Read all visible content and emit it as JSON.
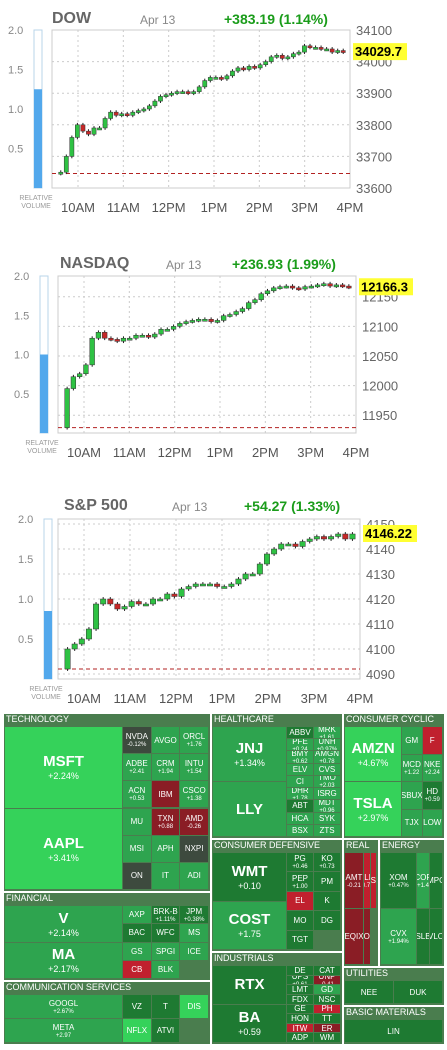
{
  "chart_data": [
    {
      "type": "candlestick",
      "title": "DOW",
      "date": "Apr 13",
      "change": "+383.19 (1.14%)",
      "last_label": "34029.7",
      "x_ticks": [
        "10AM",
        "11AM",
        "12PM",
        "1PM",
        "2PM",
        "3PM",
        "4PM"
      ],
      "y_ticks": [
        34100,
        34000,
        33900,
        33800,
        33700,
        33600
      ],
      "ylim": [
        33600,
        34100
      ],
      "prev_close": 33646,
      "rel_volume_ticks": [
        "2.0",
        "1.5",
        "1.0",
        "0.5"
      ],
      "rel_volume_label": [
        "RELATIVE",
        "VOLUME"
      ],
      "rel_volume": 1.25,
      "closes": [
        33650,
        33700,
        33760,
        33800,
        33780,
        33770,
        33790,
        33790,
        33820,
        33840,
        33830,
        33835,
        33830,
        33840,
        33845,
        33850,
        33860,
        33875,
        33890,
        33895,
        33900,
        33905,
        33905,
        33900,
        33905,
        33920,
        33940,
        33950,
        33950,
        33945,
        33955,
        33970,
        33980,
        33975,
        33985,
        33980,
        33990,
        34000,
        34015,
        34020,
        34010,
        34015,
        34025,
        34030,
        34050,
        34045,
        34045,
        34040,
        34040,
        34030,
        34035,
        34030
      ]
    },
    {
      "type": "candlestick",
      "title": "NASDAQ",
      "date": "Apr 13",
      "change": "+236.93 (1.99%)",
      "last_label": "12166.3",
      "x_ticks": [
        "10AM",
        "11AM",
        "12PM",
        "1PM",
        "2PM",
        "3PM",
        "4PM"
      ],
      "y_ticks": [
        12150,
        12100,
        12050,
        12000,
        11950
      ],
      "ylim": [
        11920,
        12185
      ],
      "prev_close": 11929,
      "rel_volume_ticks": [
        "2.0",
        "1.5",
        "1.0",
        "0.5"
      ],
      "rel_volume_label": [
        "RELATIVE",
        "VOLUME"
      ],
      "rel_volume": 1.0,
      "closes": [
        11995,
        12015,
        12020,
        12035,
        12080,
        12090,
        12080,
        12078,
        12075,
        12080,
        12080,
        12085,
        12085,
        12082,
        12087,
        12095,
        12095,
        12100,
        12105,
        12108,
        12110,
        12112,
        12112,
        12108,
        12110,
        12118,
        12120,
        12125,
        12130,
        12140,
        12145,
        12155,
        12160,
        12165,
        12167,
        12168,
        12165,
        12163,
        12167,
        12168,
        12170,
        12172,
        12168,
        12170,
        12168,
        12166
      ]
    },
    {
      "type": "candlestick",
      "title": "S&P 500",
      "date": "Apr 13",
      "change": "+54.27 (1.33%)",
      "last_label": "4146.22",
      "x_ticks": [
        "10AM",
        "11AM",
        "12PM",
        "1PM",
        "2PM",
        "3PM",
        "4PM"
      ],
      "y_ticks": [
        4150,
        4140,
        4130,
        4120,
        4110,
        4100,
        4090
      ],
      "ylim": [
        4088,
        4152
      ],
      "prev_close": 4092,
      "rel_volume_ticks": [
        "2.0",
        "1.5",
        "1.0",
        "0.5"
      ],
      "rel_volume_label": [
        "RELATIVE",
        "VOLUME"
      ],
      "rel_volume": 0.85,
      "closes": [
        4100,
        4102,
        4104,
        4108,
        4118,
        4120,
        4118,
        4116,
        4117,
        4119,
        4118,
        4118,
        4120,
        4120,
        4122,
        4121,
        4124,
        4125,
        4126,
        4126,
        4126,
        4125,
        4125,
        4126,
        4128,
        4130,
        4130,
        4134,
        4138,
        4140,
        4142,
        4142,
        4141,
        4143,
        4144,
        4145,
        4144,
        4145,
        4146,
        4144,
        4146
      ]
    }
  ],
  "heatmap": {
    "colors": {
      "dark_green": "#1e7a32",
      "green": "#2ea44f",
      "bright_green": "#35d25a",
      "neutral": "#3d4a3e",
      "red": "#c0202e",
      "dark_red": "#8a1d25",
      "header": "#4a7d4e"
    },
    "sectors": [
      {
        "name": "TECHNOLOGY",
        "tiles": [
          {
            "t": "MSFT",
            "c": "+2.24%",
            "s": "bright_green"
          },
          {
            "t": "AAPL",
            "c": "+3.41%",
            "s": "bright_green"
          },
          {
            "t": "NVDA",
            "c": "-0.12%",
            "s": "neutral"
          },
          {
            "t": "AVGO",
            "c": "",
            "s": "green"
          },
          {
            "t": "ORCL",
            "c": "+1.76",
            "s": "green"
          },
          {
            "t": "ADBE",
            "c": "+2.41",
            "s": "green"
          },
          {
            "t": "CRM",
            "c": "+1.94",
            "s": "green"
          },
          {
            "t": "INTU",
            "c": "+1.54",
            "s": "green"
          },
          {
            "t": "ACN",
            "c": "+0.53",
            "s": "green"
          },
          {
            "t": "IBM",
            "c": "",
            "s": "dark_red"
          },
          {
            "t": "CSCO",
            "c": "+1.38",
            "s": "green"
          },
          {
            "t": "MU",
            "c": "",
            "s": "green"
          },
          {
            "t": "TXN",
            "c": "+0.88",
            "s": "dark_red"
          },
          {
            "t": "AMD",
            "c": "-0.26",
            "s": "dark_red"
          },
          {
            "t": "MSI",
            "c": "",
            "s": "green"
          },
          {
            "t": "APH",
            "c": "",
            "s": "green"
          },
          {
            "t": "NXPI",
            "c": "",
            "s": "neutral"
          },
          {
            "t": "ON",
            "c": "",
            "s": "neutral"
          },
          {
            "t": "IT",
            "c": "",
            "s": "green"
          },
          {
            "t": "ADI",
            "c": "",
            "s": "green"
          }
        ]
      },
      {
        "name": "HEALTHCARE",
        "tiles": [
          {
            "t": "JNJ",
            "c": "+1.34%",
            "s": "green"
          },
          {
            "t": "LLY",
            "c": "",
            "s": "green"
          },
          {
            "t": "ABBV",
            "c": "",
            "s": "dark_green"
          },
          {
            "t": "MRK",
            "c": "+1.61",
            "s": "green"
          },
          {
            "t": "PFE",
            "c": "+0.24",
            "s": "green"
          },
          {
            "t": "UNH",
            "c": "+0.97%",
            "s": "green"
          },
          {
            "t": "BMY",
            "c": "+0.62",
            "s": "green"
          },
          {
            "t": "AMGN",
            "c": "+0.78",
            "s": "green"
          },
          {
            "t": "ELV",
            "c": "",
            "s": "green"
          },
          {
            "t": "CVS",
            "c": "",
            "s": "green"
          },
          {
            "t": "CI",
            "c": "",
            "s": "green"
          },
          {
            "t": "TMO",
            "c": "+2.03",
            "s": "green"
          },
          {
            "t": "DHR",
            "c": "+1.78",
            "s": "green"
          },
          {
            "t": "ISRG",
            "c": "",
            "s": "green"
          },
          {
            "t": "ABT",
            "c": "",
            "s": "dark_green"
          },
          {
            "t": "MDT",
            "c": "+0.96",
            "s": "green"
          },
          {
            "t": "HCA",
            "c": "",
            "s": "green"
          },
          {
            "t": "SYK",
            "c": "",
            "s": "green"
          },
          {
            "t": "BSX",
            "c": "",
            "s": "green"
          },
          {
            "t": "ZTS",
            "c": "",
            "s": "green"
          }
        ]
      },
      {
        "name": "CONSUMER CYCLIC",
        "tiles": [
          {
            "t": "AMZN",
            "c": "+4.67%",
            "s": "bright_green"
          },
          {
            "t": "TSLA",
            "c": "+2.97%",
            "s": "bright_green"
          },
          {
            "t": "GM",
            "c": "",
            "s": "green"
          },
          {
            "t": "F",
            "c": "",
            "s": "red"
          },
          {
            "t": "MCD",
            "c": "+1.22",
            "s": "green"
          },
          {
            "t": "NKE",
            "c": "+2.24",
            "s": "green"
          },
          {
            "t": "SBUX",
            "c": "",
            "s": "green"
          },
          {
            "t": "HD",
            "c": "+0.59",
            "s": "dark_green"
          },
          {
            "t": "TJX",
            "c": "",
            "s": "green"
          },
          {
            "t": "LOW",
            "c": "",
            "s": "green"
          }
        ]
      },
      {
        "name": "FINANCIAL",
        "tiles": [
          {
            "t": "V",
            "c": "+2.14%",
            "s": "green"
          },
          {
            "t": "MA",
            "c": "+2.17%",
            "s": "green"
          },
          {
            "t": "AXP",
            "c": "",
            "s": "green"
          },
          {
            "t": "BRK-B",
            "c": "+1.11%",
            "s": "dark_green"
          },
          {
            "t": "JPM",
            "c": "+0.38%",
            "s": "dark_green"
          },
          {
            "t": "BAC",
            "c": "",
            "s": "dark_green"
          },
          {
            "t": "WFC",
            "c": "",
            "s": "dark_green"
          },
          {
            "t": "MS",
            "c": "",
            "s": "green"
          },
          {
            "t": "GS",
            "c": "",
            "s": "green"
          },
          {
            "t": "SPGI",
            "c": "",
            "s": "green"
          },
          {
            "t": "ICE",
            "c": "",
            "s": "green"
          },
          {
            "t": "CB",
            "c": "",
            "s": "red"
          },
          {
            "t": "BLK",
            "c": "",
            "s": "green"
          }
        ]
      },
      {
        "name": "CONSUMER DEFENSIVE",
        "tiles": [
          {
            "t": "WMT",
            "c": "+0.10",
            "s": "dark_green"
          },
          {
            "t": "COST",
            "c": "+1.75",
            "s": "green"
          },
          {
            "t": "PG",
            "c": "+0.46",
            "s": "dark_green"
          },
          {
            "t": "KO",
            "c": "+0.73",
            "s": "dark_green"
          },
          {
            "t": "PEP",
            "c": "+1.00",
            "s": "dark_green"
          },
          {
            "t": "PM",
            "c": "",
            "s": "dark_green"
          },
          {
            "t": "EL",
            "c": "",
            "s": "red"
          },
          {
            "t": "K",
            "c": "",
            "s": "dark_green"
          },
          {
            "t": "MO",
            "c": "",
            "s": "dark_green"
          },
          {
            "t": "DG",
            "c": "",
            "s": "dark_green"
          },
          {
            "t": "TGT",
            "c": "",
            "s": "dark_green"
          }
        ]
      },
      {
        "name": "REAL",
        "tiles": [
          {
            "t": "AMT",
            "c": "-0.21",
            "s": "dark_red"
          },
          {
            "t": "EQIX",
            "c": "",
            "s": "dark_red"
          },
          {
            "t": "PLD",
            "c": "-0.72",
            "s": "red"
          },
          {
            "t": "PSA",
            "c": "",
            "s": "red"
          },
          {
            "t": "O",
            "c": "",
            "s": "dark_red"
          }
        ]
      },
      {
        "name": "ENERGY",
        "tiles": [
          {
            "t": "XOM",
            "c": "+0.47%",
            "s": "dark_green"
          },
          {
            "t": "CVX",
            "c": "+1.94%",
            "s": "green"
          },
          {
            "t": "COP",
            "c": "+1.4",
            "s": "green"
          },
          {
            "t": "MPC",
            "c": "",
            "s": "dark_green"
          },
          {
            "t": "SLB",
            "c": "",
            "s": "dark_green"
          },
          {
            "t": "VLO",
            "c": "",
            "s": "dark_green"
          }
        ]
      },
      {
        "name": "INDUSTRIALS",
        "tiles": [
          {
            "t": "RTX",
            "c": "",
            "s": "dark_green"
          },
          {
            "t": "BA",
            "c": "+0.59",
            "s": "dark_green"
          },
          {
            "t": "DE",
            "c": "",
            "s": "dark_green"
          },
          {
            "t": "CAT",
            "c": "",
            "s": "dark_green"
          },
          {
            "t": "UPS",
            "c": "+0.61",
            "s": "dark_green"
          },
          {
            "t": "UNP",
            "c": "-0.41",
            "s": "dark_red"
          },
          {
            "t": "LMT",
            "c": "",
            "s": "dark_green"
          },
          {
            "t": "GD",
            "c": "",
            "s": "green"
          },
          {
            "t": "FDX",
            "c": "",
            "s": "dark_green"
          },
          {
            "t": "NSC",
            "c": "",
            "s": "dark_green"
          },
          {
            "t": "GE",
            "c": "",
            "s": "dark_green"
          },
          {
            "t": "PH",
            "c": "",
            "s": "red"
          },
          {
            "t": "HON",
            "c": "",
            "s": "dark_green"
          },
          {
            "t": "TT",
            "c": "",
            "s": "dark_green"
          },
          {
            "t": "ITW",
            "c": "",
            "s": "red"
          },
          {
            "t": "ER",
            "c": "",
            "s": "dark_red"
          },
          {
            "t": "ADP",
            "c": "",
            "s": "dark_green"
          },
          {
            "t": "WM",
            "c": "",
            "s": "dark_green"
          }
        ]
      },
      {
        "name": "UTILITIES",
        "tiles": [
          {
            "t": "NEE",
            "c": "",
            "s": "dark_green"
          },
          {
            "t": "DUK",
            "c": "",
            "s": "dark_green"
          }
        ]
      },
      {
        "name": "COMMUNICATION SERVICES",
        "tiles": [
          {
            "t": "GOOGL",
            "c": "+2.67%",
            "s": "green"
          },
          {
            "t": "META",
            "c": "+2.97",
            "s": "green"
          },
          {
            "t": "VZ",
            "c": "",
            "s": "dark_green"
          },
          {
            "t": "T",
            "c": "",
            "s": "dark_green"
          },
          {
            "t": "DIS",
            "c": "",
            "s": "bright_green"
          },
          {
            "t": "NFLX",
            "c": "",
            "s": "bright_green"
          },
          {
            "t": "ATVI",
            "c": "",
            "s": "dark_green"
          }
        ]
      },
      {
        "name": "BASIC MATERIALS",
        "tiles": [
          {
            "t": "LIN",
            "c": "",
            "s": "dark_green"
          }
        ]
      }
    ]
  }
}
